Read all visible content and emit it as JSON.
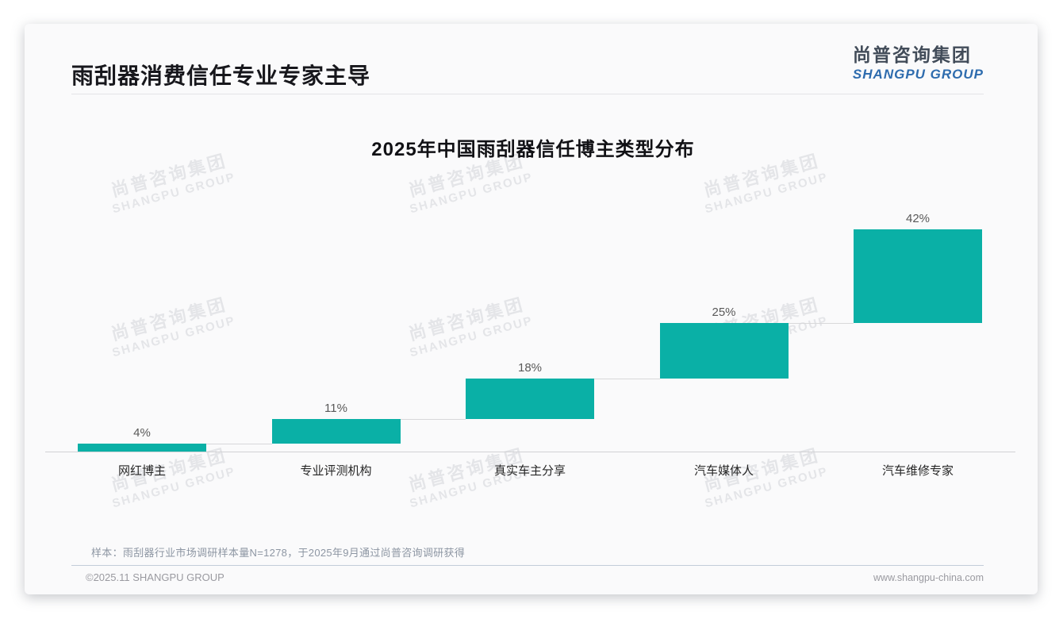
{
  "page": {
    "title": "雨刮器消费信任专业专家主导",
    "brand": {
      "cn": "尚普咨询集团",
      "en": "SHANGPU GROUP"
    },
    "watermark": {
      "cn": "尚普咨询集团",
      "en": "SHANGPU GROUP"
    },
    "footnote": "样本：雨刮器行业市场调研样本量N=1278，于2025年9月通过尚普咨询调研获得",
    "footer_left": "©2025.11 SHANGPU GROUP",
    "footer_right": "www.shangpu-china.com"
  },
  "colors": {
    "bar": "#0ab0a6",
    "axis": "#d2d2d5",
    "connector": "#d8d8da",
    "brand_blue": "#2e6cae",
    "value_label": "#595959",
    "category_label": "#262626"
  },
  "chart_data": {
    "type": "bar",
    "subtype": "waterfall-steps",
    "title": "2025年中国雨刮器信任博主类型分布",
    "categories": [
      "网红博主",
      "专业评测机构",
      "真实车主分享",
      "汽车媒体人",
      "汽车维修专家"
    ],
    "values": [
      4,
      11,
      18,
      25,
      42
    ],
    "data_labels": [
      "4%",
      "11%",
      "18%",
      "25%",
      "42%"
    ],
    "cumulative": [
      4,
      15,
      33,
      58,
      100
    ],
    "ylim": [
      0,
      100
    ],
    "grid": false,
    "legend": "none",
    "bar_color": "#0ab0a6",
    "connector_lines": true
  }
}
